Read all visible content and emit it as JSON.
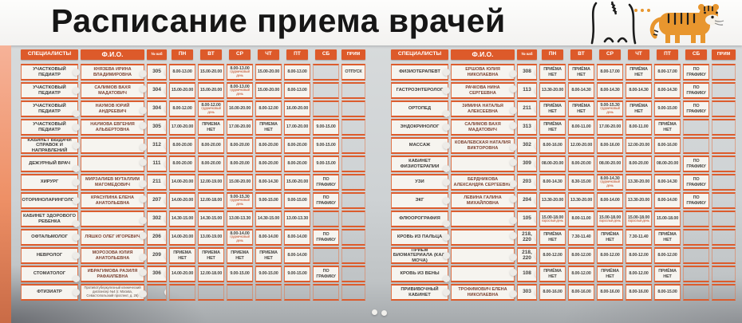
{
  "page": {
    "title": "Расписание приема врачей"
  },
  "colors": {
    "accent": "#dd5a2a",
    "board": "#ced2d4",
    "cell": "#f6f4ef",
    "name_text": "#7e4434",
    "note_text": "#c2512c",
    "wall_strip": "#ee9066"
  },
  "columns": [
    "СПЕЦИАЛИСТЫ",
    "Ф.И.О.",
    "№ каб",
    "ПН",
    "ВТ",
    "СР",
    "ЧТ",
    "ПТ",
    "СБ",
    "ПРИМ"
  ],
  "decor": {
    "tiger_icon": "tiger",
    "cat_icon": "cat-line-drawing"
  },
  "tables": {
    "left": {
      "rows": [
        {
          "specialty": "УЧАСТКОВЫЙ ПЕДИАТР",
          "name": "КНЯЗЕВА ИРИНА ВЛАДИМИРОВНА",
          "cab": "305",
          "days": [
            {
              "t": "8.00-13.00"
            },
            {
              "t": "15.00-20.00"
            },
            {
              "t": "8.00-13.00",
              "n": "грудничковый день"
            },
            {
              "t": "15.00-20.00"
            },
            {
              "t": "8.00-13.00"
            },
            {
              "t": ""
            },
            {
              "t": "ОТПУСК"
            }
          ]
        },
        {
          "specialty": "УЧАСТКОВЫЙ ПЕДИАТР",
          "name": "САЛИМОВ ВАХЯ МАДАТОВИЧ",
          "cab": "304",
          "days": [
            {
              "t": "15.00-20.00"
            },
            {
              "t": "15.00-20.00"
            },
            {
              "t": "8.00-13.00",
              "n": "грудничковый день"
            },
            {
              "t": "15.00-20.00"
            },
            {
              "t": "8.00-13.00"
            },
            {
              "t": ""
            },
            {
              "t": ""
            }
          ]
        },
        {
          "specialty": "УЧАСТКОВЫЙ ПЕДИАТР",
          "name": "НАУМОВ ЮРИЙ АНДРЕЕВИЧ",
          "cab": "304",
          "days": [
            {
              "t": "8.00-12.00"
            },
            {
              "t": "8.00-12.00",
              "n": "грудничковый день"
            },
            {
              "t": "16.00-20.00"
            },
            {
              "t": "8.00-12.00"
            },
            {
              "t": "16.00-20.00"
            },
            {
              "t": ""
            },
            {
              "t": ""
            }
          ]
        },
        {
          "specialty": "УЧАСТКОВЫЙ ПЕДИАТР",
          "name": "НАУМОВА ЕВГЕНИЯ АЛЬБЕРТОВНА",
          "cab": "305",
          "days": [
            {
              "t": "17.00-20.00"
            },
            {
              "t": "ПРИЕМА НЕТ"
            },
            {
              "t": "17.00-20.00"
            },
            {
              "t": "ПРИЕМА НЕТ"
            },
            {
              "t": "17.00-20.00"
            },
            {
              "t": "9.00-15.00"
            },
            {
              "t": ""
            }
          ]
        },
        {
          "specialty": "КАБИНЕТ ВЫДАЧИ СПРАВОК И НАПРАВЛЕНИЙ",
          "name": "",
          "cab": "312",
          "days": [
            {
              "t": "8.00-20.00"
            },
            {
              "t": "8.00-20.00"
            },
            {
              "t": "8.00-20.00"
            },
            {
              "t": "8.00-20.00"
            },
            {
              "t": "8.00-20.00"
            },
            {
              "t": "9.00-15.00"
            },
            {
              "t": ""
            }
          ]
        },
        {
          "specialty": "ДЕЖУРНЫЙ ВРАЧ",
          "name": "",
          "cab": "111",
          "days": [
            {
              "t": "8.00-20.00"
            },
            {
              "t": "8.00-20.00"
            },
            {
              "t": "8.00-20.00"
            },
            {
              "t": "8.00-20.00"
            },
            {
              "t": "8.00-20.00"
            },
            {
              "t": "9.00-15.00"
            },
            {
              "t": ""
            }
          ]
        },
        {
          "specialty": "ХИРУРГ",
          "name": "МИРЗАЛИЕВ МУТАЛЛИМ МАГОМЕДОВИЧ",
          "cab": "211",
          "days": [
            {
              "t": "14.00-20.00"
            },
            {
              "t": "12.00-19.00"
            },
            {
              "t": "15.00-20.00"
            },
            {
              "t": "8.00-14.30"
            },
            {
              "t": "15.00-20.00"
            },
            {
              "t": "ПО ГРАФИКУ"
            },
            {
              "t": ""
            }
          ]
        },
        {
          "specialty": "ОТОРИНОЛАРИНГОЛОГ",
          "name": "КРАСУЛИНА ЕЛЕНА АНАТОЛЬЕВНА",
          "cab": "207",
          "days": [
            {
              "t": "14.00-20.00"
            },
            {
              "t": "12.00-18.00"
            },
            {
              "t": "9.00-15.30",
              "n": "грудничковый день"
            },
            {
              "t": "9.00-15.00"
            },
            {
              "t": "9.00-15.00"
            },
            {
              "t": "ПО ГРАФИКУ"
            },
            {
              "t": ""
            }
          ]
        },
        {
          "specialty": "КАБИНЕТ ЗДОРОВОГО РЕБЕНКА",
          "name": "",
          "cab": "302",
          "days": [
            {
              "t": "14.30-15.00"
            },
            {
              "t": "14.30-15.00"
            },
            {
              "t": "13.00-13.30"
            },
            {
              "t": "14.30-15.00"
            },
            {
              "t": "13.00-13.30"
            },
            {
              "t": ""
            },
            {
              "t": ""
            }
          ]
        },
        {
          "specialty": "ОФТАЛЬМОЛОГ",
          "name": "ЛЯШКО ОЛЕГ ИГОРЕВИЧ",
          "cab": "206",
          "days": [
            {
              "t": "14.00-20.00"
            },
            {
              "t": "13.00-19.00"
            },
            {
              "t": "8.00-14.00",
              "n": "грудничковый день"
            },
            {
              "t": "8.00-14.00"
            },
            {
              "t": "8.00-14.00"
            },
            {
              "t": "ПО ГРАФИКУ"
            },
            {
              "t": ""
            }
          ]
        },
        {
          "specialty": "НЕВРОЛОГ",
          "name": "МОРОЗОВА ЮЛИЯ АНАТОЛЬЕВНА",
          "cab": "209",
          "days": [
            {
              "t": "ПРИЕМА НЕТ"
            },
            {
              "t": "ПРИЕМА НЕТ"
            },
            {
              "t": "ПРИЕМА НЕТ"
            },
            {
              "t": "ПРИЕМА НЕТ"
            },
            {
              "t": "8.00-14.00"
            },
            {
              "t": ""
            },
            {
              "t": ""
            }
          ]
        },
        {
          "specialty": "СТОМАТОЛОГ",
          "name": "ИБРАГИМОВА РАЗИЛЯ РАФАИЛЕВНА",
          "cab": "306",
          "days": [
            {
              "t": "14.00-20.00"
            },
            {
              "t": "12.00-18.00"
            },
            {
              "t": "9.00-15.00"
            },
            {
              "t": "9.00-15.00"
            },
            {
              "t": "9.00-15.00"
            },
            {
              "t": "ПО ГРАФИКУ"
            },
            {
              "t": ""
            }
          ]
        },
        {
          "specialty": "ФТИЗИАТР",
          "name": "Противотуберкулезный клинический диспансер №4 (г. Москва, Севастопольский проспект, д. 26)",
          "cab": "",
          "days": [
            {
              "t": ""
            },
            {
              "t": ""
            },
            {
              "t": ""
            },
            {
              "t": ""
            },
            {
              "t": ""
            },
            {
              "t": ""
            },
            {
              "t": ""
            }
          ]
        }
      ]
    },
    "right": {
      "rows": [
        {
          "specialty": "ФИЗИОТЕРАПЕВТ",
          "name": "ЕРШОВА ЮЛИЯ НИКОЛАЕВНА",
          "cab": "308",
          "days": [
            {
              "t": "ПРИЁМА НЕТ"
            },
            {
              "t": "ПРИЁМА НЕТ"
            },
            {
              "t": "8.00-17.00"
            },
            {
              "t": "ПРИЁМА НЕТ"
            },
            {
              "t": "8.00-17.00"
            },
            {
              "t": "ПО ГРАФИКУ"
            },
            {
              "t": ""
            }
          ]
        },
        {
          "specialty": "ГАСТРОЭНТЕРОЛОГ",
          "name": "РАЧКОВА НИНА СЕРГЕЕВНА",
          "cab": "113",
          "days": [
            {
              "t": "13.30-20.00"
            },
            {
              "t": "8.00-14.30"
            },
            {
              "t": "8.00-14.30"
            },
            {
              "t": "8.00-14.30"
            },
            {
              "t": "8.00-14.30"
            },
            {
              "t": "ПО ГРАФИКУ"
            },
            {
              "t": ""
            }
          ]
        },
        {
          "specialty": "ОРТОПЕД",
          "name": "ЗИМИНА НАТАЛЬЯ АЛЕКСЕЕВНА",
          "cab": "211",
          "days": [
            {
              "t": "ПРИЁМА НЕТ"
            },
            {
              "t": "ПРИЁМА НЕТ"
            },
            {
              "t": "9.00-15.30",
              "n": "грудничковый день"
            },
            {
              "t": "ПРИЁМА НЕТ"
            },
            {
              "t": "9.00-15.00"
            },
            {
              "t": "ПО ГРАФИКУ"
            },
            {
              "t": ""
            }
          ]
        },
        {
          "specialty": "ЭНДОКРИНОЛОГ",
          "name": "САЛИМОВ ВАХЯ МАДАТОВИЧ",
          "cab": "313",
          "days": [
            {
              "t": "ПРИЁМА НЕТ"
            },
            {
              "t": "8.00-11.00"
            },
            {
              "t": "17.00-20.00"
            },
            {
              "t": "8.00-11.00"
            },
            {
              "t": "ПРИЁМА НЕТ"
            },
            {
              "t": ""
            },
            {
              "t": ""
            }
          ]
        },
        {
          "specialty": "МАССАЖ",
          "name": "КОВАЛЕВСКАЯ НАТАЛИЯ ВИКТОРОВНА",
          "cab": "302",
          "days": [
            {
              "t": "8.00-16.00"
            },
            {
              "t": "12.00-20.00"
            },
            {
              "t": "8.00-16.00"
            },
            {
              "t": "12.00-20.00"
            },
            {
              "t": "8.00-16.00"
            },
            {
              "t": ""
            },
            {
              "t": ""
            }
          ]
        },
        {
          "specialty": "КАБИНЕТ ФИЗИОТЕРАПИИ",
          "name": "",
          "cab": "309",
          "days": [
            {
              "t": "08.00-20.00"
            },
            {
              "t": "8.00-20.00"
            },
            {
              "t": "08.00-20.00"
            },
            {
              "t": "8.00-20.00"
            },
            {
              "t": "08.00-20.00"
            },
            {
              "t": "ПО ГРАФИКУ"
            },
            {
              "t": ""
            }
          ]
        },
        {
          "specialty": "УЗИ",
          "name": "БЕРДНИКОВА АЛЕКСАНДРА СЕРГЕЕВНА",
          "cab": "203",
          "days": [
            {
              "t": "8.00-14.30"
            },
            {
              "t": "8.30-15.00"
            },
            {
              "t": "8.00-14.30",
              "n": "грудничковый день"
            },
            {
              "t": "13.30-20.00"
            },
            {
              "t": "8.00-14.30"
            },
            {
              "t": "ПО ГРАФИКУ"
            },
            {
              "t": ""
            }
          ]
        },
        {
          "specialty": "ЭКГ",
          "name": "ЛЕВИНА ГАЛИНА МИХАЙЛОВНА",
          "cab": "204",
          "days": [
            {
              "t": "13.30-20.00"
            },
            {
              "t": "13.30-20.00"
            },
            {
              "t": "8.00-14.00"
            },
            {
              "t": "13.30-20.00"
            },
            {
              "t": "8.00-14.00"
            },
            {
              "t": "ПО ГРАФИКУ"
            },
            {
              "t": ""
            }
          ]
        },
        {
          "specialty": "ФЛЮОРОГРАФИЯ",
          "name": "",
          "cab": "105",
          "days": [
            {
              "t": "15.00-18.00",
              "n": "взрослый день"
            },
            {
              "t": "8.00-11.00"
            },
            {
              "t": "15.00-18.00",
              "n": "взрослый день"
            },
            {
              "t": "15.00-18.00",
              "n": "взрослый день"
            },
            {
              "t": "15.00-18.00"
            },
            {
              "t": ""
            },
            {
              "t": ""
            }
          ]
        },
        {
          "specialty": "КРОВЬ ИЗ ПАЛЬЦА",
          "name": "",
          "cab": "218, 220",
          "days": [
            {
              "t": "ПРИЁМА НЕТ"
            },
            {
              "t": "7.30-11.40"
            },
            {
              "t": "ПРИЁМА НЕТ"
            },
            {
              "t": "7.30-11.40"
            },
            {
              "t": "ПРИЁМА НЕТ"
            },
            {
              "t": ""
            },
            {
              "t": ""
            }
          ]
        },
        {
          "specialty": "ПРИЁМ БИОМАТЕРИАЛА (КАЛ, МОЧА)",
          "name": "",
          "cab": "218, 220",
          "days": [
            {
              "t": "8.00-12.00"
            },
            {
              "t": "8.00-12.00"
            },
            {
              "t": "8.00-12.00"
            },
            {
              "t": "8.00-12.00"
            },
            {
              "t": "8.00-12.00"
            },
            {
              "t": ""
            },
            {
              "t": ""
            }
          ]
        },
        {
          "specialty": "КРОВЬ ИЗ ВЕНЫ",
          "name": "",
          "cab": "108",
          "days": [
            {
              "t": "ПРИЁМА НЕТ"
            },
            {
              "t": "8.00-12.00"
            },
            {
              "t": "ПРИЁМА НЕТ"
            },
            {
              "t": "8.00-12.00"
            },
            {
              "t": "ПРИЁМА НЕТ"
            },
            {
              "t": ""
            },
            {
              "t": ""
            }
          ]
        },
        {
          "specialty": "ПРИВИВОЧНЫЙ КАБИНЕТ",
          "name": "ТРОФИМОВИЧ ЕЛЕНА НИКОЛАЕВНА",
          "cab": "303",
          "days": [
            {
              "t": "8.00-16.00"
            },
            {
              "t": "8.00-16.00"
            },
            {
              "t": "8.00-16.00"
            },
            {
              "t": "8.00-16.00"
            },
            {
              "t": "8.00-15.00"
            },
            {
              "t": ""
            },
            {
              "t": ""
            }
          ]
        }
      ]
    }
  }
}
